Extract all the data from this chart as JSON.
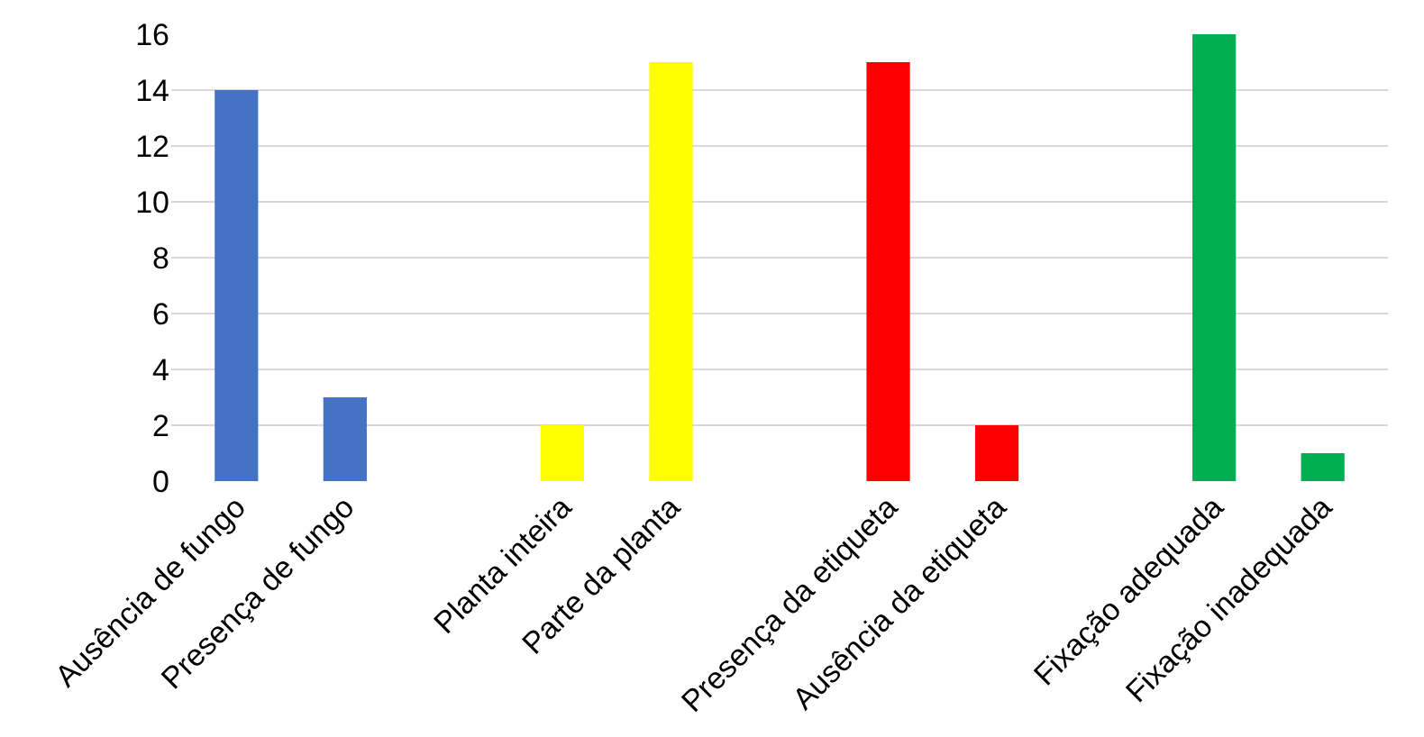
{
  "chart_data": {
    "type": "bar",
    "categories": [
      "Ausência de fungo",
      "Presença de fungo",
      null,
      "Planta inteira",
      "Parte da planta",
      null,
      "Presença da etiqueta",
      "Ausência da etiqueta",
      null,
      "Fixação adequada",
      "Fixação inadequada"
    ],
    "values": [
      14,
      3,
      null,
      2,
      15,
      null,
      15,
      2,
      null,
      16,
      1
    ],
    "colors": [
      "#4472c4",
      "#4472c4",
      "#4472c4",
      "#ffff00",
      "#ffff00",
      "#ffff00",
      "#ff0000",
      "#ff0000",
      "#ff0000",
      "#00b050",
      "#00b050"
    ],
    "ylim": [
      0,
      16
    ],
    "yticks": [
      0,
      2,
      4,
      6,
      8,
      10,
      12,
      14,
      16
    ],
    "grid": "y"
  }
}
